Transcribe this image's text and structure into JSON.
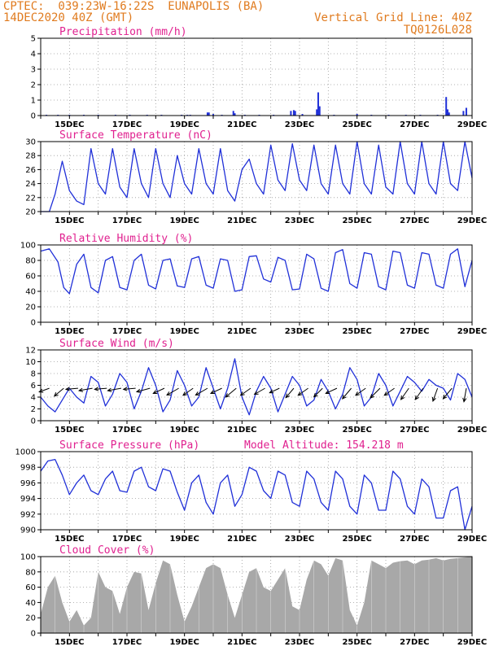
{
  "header": {
    "line1_left": "CPTEC:  039:23W-16:22S  EUNAPOLIS (BA)",
    "line2_left": "14DEC2020 40Z (GMT)",
    "line1_right": "Vertical Grid Line: 40Z",
    "line2_right": "TQ0126L028"
  },
  "colors": {
    "header": "#e07b1f",
    "title": "#e0208f",
    "line": "#2030d8",
    "bar": "#2030d8",
    "cloud": "#a8a8a8",
    "arrow": "#000000"
  },
  "chart_data": [
    {
      "id": "precip",
      "type": "bar",
      "title": "Precipitation (mm/h)",
      "ylim": [
        0,
        5
      ],
      "yticks": [
        "0",
        "1",
        "2",
        "3",
        "4",
        "5"
      ],
      "xlabels": [
        "15DEC",
        "17DEC",
        "19DEC",
        "21DEC",
        "23DEC",
        "25DEC",
        "27DEC",
        "29DEC"
      ],
      "x_days": [
        14.2,
        14.6,
        15.0,
        15.5,
        16.0,
        16.6,
        17.1,
        17.7,
        18.2,
        18.9,
        19.1,
        19.2,
        19.8,
        19.85,
        20.0,
        20.3,
        20.7,
        20.75,
        21.1,
        21.6,
        22.1,
        22.7,
        22.8,
        22.85,
        23.1,
        23.6,
        23.65,
        23.7,
        24.2,
        25.0,
        25.5,
        26.1,
        26.7,
        27.2,
        27.8,
        28.1,
        28.15,
        28.2,
        28.7,
        28.8
      ],
      "values": [
        0.05,
        0.05,
        0.05,
        0.05,
        0.05,
        0.05,
        0.05,
        0.05,
        0.05,
        0.05,
        0.05,
        0.05,
        0.2,
        0.2,
        0.1,
        0.05,
        0.3,
        0.15,
        0.05,
        0.05,
        0.05,
        0.3,
        0.35,
        0.3,
        0.1,
        0.4,
        1.5,
        0.6,
        0.05,
        0.1,
        0.05,
        0.05,
        0.05,
        0.05,
        0.05,
        1.2,
        0.4,
        0.2,
        0.3,
        0.5
      ]
    },
    {
      "id": "temp",
      "type": "line",
      "title": "Surface Temperature (nC)",
      "ylim": [
        20,
        30
      ],
      "yticks": [
        "20",
        "22",
        "24",
        "26",
        "28",
        "30"
      ],
      "xlabels": [
        "15DEC",
        "17DEC",
        "19DEC",
        "21DEC",
        "23DEC",
        "25DEC",
        "27DEC",
        "29DEC"
      ],
      "x_days": [
        14.0,
        14.3,
        14.5,
        14.75,
        15.0,
        15.25,
        15.5,
        15.75,
        16.0,
        16.25,
        16.5,
        16.75,
        17.0,
        17.25,
        17.5,
        17.75,
        18.0,
        18.25,
        18.5,
        18.75,
        19.0,
        19.25,
        19.5,
        19.75,
        20.0,
        20.25,
        20.5,
        20.75,
        21.0,
        21.25,
        21.5,
        21.75,
        22.0,
        22.25,
        22.5,
        22.75,
        23.0,
        23.25,
        23.5,
        23.75,
        24.0,
        24.25,
        24.5,
        24.75,
        25.0,
        25.25,
        25.5,
        25.75,
        26.0,
        26.25,
        26.5,
        26.75,
        27.0,
        27.25,
        27.5,
        27.75,
        28.0,
        28.25,
        28.5,
        28.75,
        29.0
      ],
      "values": [
        20.0,
        20.0,
        22.5,
        27.2,
        23.0,
        21.5,
        21.0,
        29.0,
        24.0,
        22.5,
        29.0,
        23.5,
        22.0,
        29.0,
        24.0,
        22.0,
        29.0,
        24.0,
        22.0,
        28.0,
        24.0,
        22.5,
        29.0,
        24.0,
        22.5,
        29.0,
        23.0,
        21.5,
        26.0,
        27.5,
        24.0,
        22.5,
        29.5,
        24.5,
        23.0,
        29.7,
        24.5,
        23.0,
        29.5,
        24.0,
        22.5,
        29.5,
        24.0,
        22.5,
        30.0,
        24.0,
        22.5,
        29.5,
        23.5,
        22.5,
        30.0,
        24.0,
        22.5,
        30.0,
        24.0,
        22.5,
        30.0,
        24.0,
        23.0,
        30.0,
        24.8
      ]
    },
    {
      "id": "rh",
      "type": "line",
      "title": "Relative Humidity (%)",
      "ylim": [
        0,
        100
      ],
      "yticks": [
        "0",
        "20",
        "40",
        "60",
        "80",
        "100"
      ],
      "xlabels": [
        "15DEC",
        "17DEC",
        "19DEC",
        "21DEC",
        "23DEC",
        "25DEC",
        "27DEC",
        "29DEC"
      ],
      "x_days": [
        14.0,
        14.3,
        14.6,
        14.8,
        15.0,
        15.25,
        15.5,
        15.75,
        16.0,
        16.25,
        16.5,
        16.75,
        17.0,
        17.25,
        17.5,
        17.75,
        18.0,
        18.25,
        18.5,
        18.75,
        19.0,
        19.25,
        19.5,
        19.75,
        20.0,
        20.25,
        20.5,
        20.75,
        21.0,
        21.25,
        21.5,
        21.75,
        22.0,
        22.25,
        22.5,
        22.75,
        23.0,
        23.25,
        23.5,
        23.75,
        24.0,
        24.25,
        24.5,
        24.75,
        25.0,
        25.25,
        25.5,
        25.75,
        26.0,
        26.25,
        26.5,
        26.75,
        27.0,
        27.25,
        27.5,
        27.75,
        28.0,
        28.25,
        28.5,
        28.75,
        29.0
      ],
      "values": [
        92,
        95,
        78,
        45,
        37,
        75,
        88,
        45,
        38,
        80,
        85,
        45,
        42,
        80,
        88,
        48,
        43,
        80,
        82,
        47,
        45,
        82,
        85,
        48,
        44,
        82,
        80,
        40,
        42,
        85,
        86,
        56,
        52,
        84,
        80,
        42,
        43,
        88,
        82,
        44,
        40,
        90,
        94,
        50,
        44,
        90,
        88,
        46,
        42,
        92,
        90,
        48,
        44,
        90,
        88,
        48,
        44,
        88,
        95,
        46,
        80
      ]
    },
    {
      "id": "wind",
      "type": "line",
      "title": "Surface Wind (m/s)",
      "ylim": [
        0,
        12
      ],
      "yticks": [
        "0",
        "2",
        "4",
        "6",
        "8",
        "10",
        "12"
      ],
      "xlabels": [
        "15DEC",
        "17DEC",
        "19DEC",
        "21DEC",
        "23DEC",
        "25DEC",
        "27DEC",
        "29DEC"
      ],
      "x_days": [
        14.0,
        14.25,
        14.5,
        14.75,
        15.0,
        15.25,
        15.5,
        15.75,
        16.0,
        16.25,
        16.5,
        16.75,
        17.0,
        17.25,
        17.5,
        17.75,
        18.0,
        18.25,
        18.5,
        18.75,
        19.0,
        19.25,
        19.5,
        19.75,
        20.0,
        20.25,
        20.5,
        20.75,
        21.0,
        21.25,
        21.5,
        21.75,
        22.0,
        22.25,
        22.5,
        22.75,
        23.0,
        23.25,
        23.5,
        23.75,
        24.0,
        24.25,
        24.5,
        24.75,
        25.0,
        25.25,
        25.5,
        25.75,
        26.0,
        26.25,
        26.5,
        26.75,
        27.0,
        27.25,
        27.5,
        27.75,
        28.0,
        28.25,
        28.5,
        28.75,
        29.0
      ],
      "values": [
        4.0,
        2.5,
        1.5,
        3.5,
        5.5,
        4.0,
        3.0,
        7.5,
        6.5,
        2.5,
        4.5,
        8.0,
        6.5,
        2.0,
        5.0,
        9.0,
        6.0,
        1.5,
        3.5,
        8.5,
        6.0,
        2.5,
        4.0,
        9.0,
        5.5,
        2.0,
        5.5,
        10.5,
        4.0,
        1.0,
        5.0,
        7.5,
        5.5,
        1.5,
        4.5,
        7.5,
        6.0,
        2.5,
        3.5,
        7.0,
        5.0,
        2.0,
        4.5,
        9.0,
        7.0,
        2.5,
        4.0,
        8.0,
        6.0,
        2.5,
        5.0,
        7.5,
        6.5,
        5.0,
        7.0,
        6.0,
        5.5,
        3.5,
        8.0,
        7.0,
        4.0
      ],
      "barb_days": [
        14.3,
        14.8,
        15.3,
        15.8,
        16.3,
        16.8,
        17.3,
        17.8,
        18.3,
        18.8,
        19.3,
        19.8,
        20.3,
        20.8,
        21.3,
        21.8,
        22.3,
        22.8,
        23.3,
        23.8,
        24.3,
        24.8,
        25.3,
        25.8,
        26.3,
        26.8,
        27.3,
        27.8,
        28.3,
        28.8
      ],
      "barb_dir_deg": [
        200,
        220,
        185,
        190,
        185,
        190,
        185,
        195,
        205,
        210,
        215,
        210,
        205,
        220,
        215,
        210,
        205,
        230,
        215,
        225,
        205,
        230,
        215,
        225,
        215,
        235,
        235,
        250,
        230,
        260
      ],
      "barb_speed": [
        4,
        5,
        5,
        6,
        5,
        6,
        5,
        6,
        5,
        6,
        5,
        6,
        5,
        6,
        5,
        5,
        4,
        5,
        5,
        5,
        5,
        6,
        5,
        6,
        5,
        6,
        6,
        6,
        6,
        6
      ]
    },
    {
      "id": "pres",
      "type": "line",
      "title": "Surface Pressure (hPa)",
      "annotation": "Model Altitude: 154.218 m",
      "ylim": [
        990,
        1000
      ],
      "yticks": [
        "990",
        "992",
        "994",
        "996",
        "998",
        "1000"
      ],
      "xlabels": [
        "15DEC",
        "17DEC",
        "19DEC",
        "21DEC",
        "23DEC",
        "25DEC",
        "27DEC",
        "29DEC"
      ],
      "x_days": [
        14.0,
        14.25,
        14.5,
        14.75,
        15.0,
        15.25,
        15.5,
        15.75,
        16.0,
        16.25,
        16.5,
        16.75,
        17.0,
        17.25,
        17.5,
        17.75,
        18.0,
        18.25,
        18.5,
        18.75,
        19.0,
        19.25,
        19.5,
        19.75,
        20.0,
        20.25,
        20.5,
        20.75,
        21.0,
        21.25,
        21.5,
        21.75,
        22.0,
        22.25,
        22.5,
        22.75,
        23.0,
        23.25,
        23.5,
        23.75,
        24.0,
        24.25,
        24.5,
        24.75,
        25.0,
        25.25,
        25.5,
        25.75,
        26.0,
        26.25,
        26.5,
        26.75,
        27.0,
        27.25,
        27.5,
        27.75,
        28.0,
        28.25,
        28.5,
        28.75,
        29.0
      ],
      "values": [
        997.5,
        998.8,
        999.0,
        997.0,
        994.5,
        996.0,
        997.0,
        995.0,
        994.5,
        996.5,
        997.5,
        995.0,
        994.8,
        997.5,
        998.0,
        995.5,
        995.0,
        997.8,
        997.5,
        994.8,
        992.5,
        996.0,
        997.0,
        993.5,
        992.0,
        996.0,
        997.0,
        993.0,
        994.5,
        998.0,
        997.5,
        995.0,
        994.0,
        997.5,
        997.0,
        993.5,
        993.0,
        997.5,
        996.5,
        993.5,
        992.5,
        997.5,
        996.5,
        993.0,
        992.0,
        997.0,
        996.0,
        992.5,
        992.5,
        997.5,
        996.5,
        993.0,
        992.0,
        996.5,
        995.5,
        991.5,
        991.5,
        995.0,
        995.5,
        990.0,
        993.0
      ]
    },
    {
      "id": "cloud",
      "type": "area",
      "title": "Cloud Cover (%)",
      "ylim": [
        0,
        100
      ],
      "yticks": [
        "0",
        "20",
        "40",
        "60",
        "80",
        "100"
      ],
      "xlabels": [
        "15DEC",
        "17DEC",
        "19DEC",
        "21DEC",
        "23DEC",
        "25DEC",
        "27DEC",
        "29DEC"
      ],
      "x_days": [
        14.0,
        14.25,
        14.5,
        14.75,
        15.0,
        15.25,
        15.5,
        15.75,
        16.0,
        16.25,
        16.5,
        16.75,
        17.0,
        17.25,
        17.5,
        17.75,
        18.0,
        18.25,
        18.5,
        18.75,
        19.0,
        19.25,
        19.5,
        19.75,
        20.0,
        20.25,
        20.5,
        20.75,
        21.0,
        21.25,
        21.5,
        21.75,
        22.0,
        22.25,
        22.5,
        22.75,
        23.0,
        23.25,
        23.5,
        23.75,
        24.0,
        24.25,
        24.5,
        24.75,
        25.0,
        25.25,
        25.5,
        25.75,
        26.0,
        26.25,
        26.5,
        26.75,
        27.0,
        27.25,
        27.5,
        27.75,
        28.0,
        28.25,
        28.5,
        28.75,
        29.0
      ],
      "values": [
        25,
        60,
        75,
        40,
        15,
        30,
        10,
        20,
        80,
        60,
        55,
        25,
        60,
        80,
        78,
        30,
        65,
        95,
        90,
        50,
        15,
        35,
        60,
        85,
        90,
        85,
        50,
        20,
        50,
        80,
        85,
        60,
        55,
        70,
        85,
        35,
        30,
        70,
        95,
        90,
        75,
        98,
        95,
        30,
        10,
        40,
        95,
        90,
        85,
        92,
        94,
        95,
        90,
        95,
        96,
        98,
        95,
        97,
        98,
        99,
        100
      ]
    }
  ]
}
